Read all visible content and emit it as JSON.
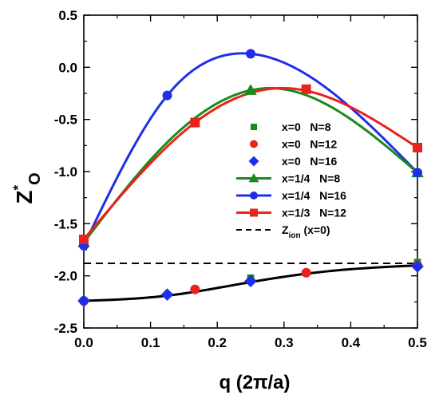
{
  "chart_data": {
    "type": "line",
    "xlabel": "q (2π/a)",
    "ylabel_main": "Z",
    "ylabel_sup": "*",
    "ylabel_sub": "O",
    "xlim": [
      0,
      0.5
    ],
    "ylim": [
      -2.5,
      0.5
    ],
    "xticks": [
      "0.0",
      "0.1",
      "0.2",
      "0.3",
      "0.4",
      "0.5"
    ],
    "yticks": [
      "-2.5",
      "-2.0",
      "-1.5",
      "-1.0",
      "-0.5",
      "0.0",
      "0.5"
    ],
    "legend_position": "center-right",
    "series": [
      {
        "name": "x=0   N=8",
        "type": "scatter",
        "marker": "square-small",
        "color": "#1a8a1a",
        "x": [
          0.0,
          0.25,
          0.5
        ],
        "y": [
          -2.24,
          -2.02,
          -1.87
        ]
      },
      {
        "name": "x=0   N=12",
        "type": "scatter",
        "marker": "circle",
        "color": "#e8231d",
        "x": [
          0.0,
          0.1667,
          0.3333,
          0.5
        ],
        "y": [
          -2.24,
          -2.13,
          -1.97,
          -1.9
        ]
      },
      {
        "name": "x=0   N=16",
        "type": "scatter",
        "marker": "diamond",
        "color": "#1f2fe6",
        "x": [
          0.0,
          0.125,
          0.25,
          0.5
        ],
        "y": [
          -2.24,
          -2.18,
          -2.05,
          -1.91
        ]
      },
      {
        "name": "x=1/4   N=8",
        "type": "line",
        "marker": "triangle",
        "color": "#1a8a1a",
        "x": [
          0.0,
          0.25,
          0.5
        ],
        "y": [
          -1.68,
          -0.22,
          -1.01
        ]
      },
      {
        "name": "x=1/4   N=16",
        "type": "line",
        "marker": "circle",
        "color": "#1f2fe6",
        "x": [
          0.0,
          0.125,
          0.25,
          0.5
        ],
        "y": [
          -1.71,
          -0.27,
          0.13,
          -1.01
        ]
      },
      {
        "name": "x=1/3   N=12",
        "type": "line",
        "marker": "square",
        "color": "#e8231d",
        "x": [
          0.0,
          0.1667,
          0.3333,
          0.5
        ],
        "y": [
          -1.65,
          -0.53,
          -0.21,
          -0.77
        ]
      },
      {
        "name_main": "Z",
        "name_sub": "ion",
        "name_tail": " (x=0)",
        "type": "hline",
        "style": "dashed",
        "color": "#000000",
        "y": -1.88
      }
    ],
    "fit_curves": [
      {
        "color": "#1f2fe6",
        "series_ref": "x=1/4   N=16",
        "x": [
          0.0,
          0.125,
          0.25,
          0.5
        ],
        "y": [
          -1.71,
          -0.27,
          0.13,
          -1.01
        ]
      },
      {
        "color": "#1a8a1a",
        "series_ref": "x=1/4   N=8",
        "x": [
          0.0,
          0.125,
          0.28,
          0.5
        ],
        "y": [
          -1.68,
          -0.72,
          -0.2,
          -1.01
        ]
      },
      {
        "color": "#e8231d",
        "series_ref": "x=1/3   N=12",
        "x": [
          0.0,
          0.1667,
          0.3,
          0.5
        ],
        "y": [
          -1.65,
          -0.53,
          -0.2,
          -0.77
        ]
      },
      {
        "color": "#000000",
        "series_ref": "x=0 fit",
        "x": [
          0.0,
          0.125,
          0.25,
          0.375,
          0.5
        ],
        "y": [
          -2.24,
          -2.19,
          -2.06,
          -1.95,
          -1.9
        ]
      }
    ]
  }
}
